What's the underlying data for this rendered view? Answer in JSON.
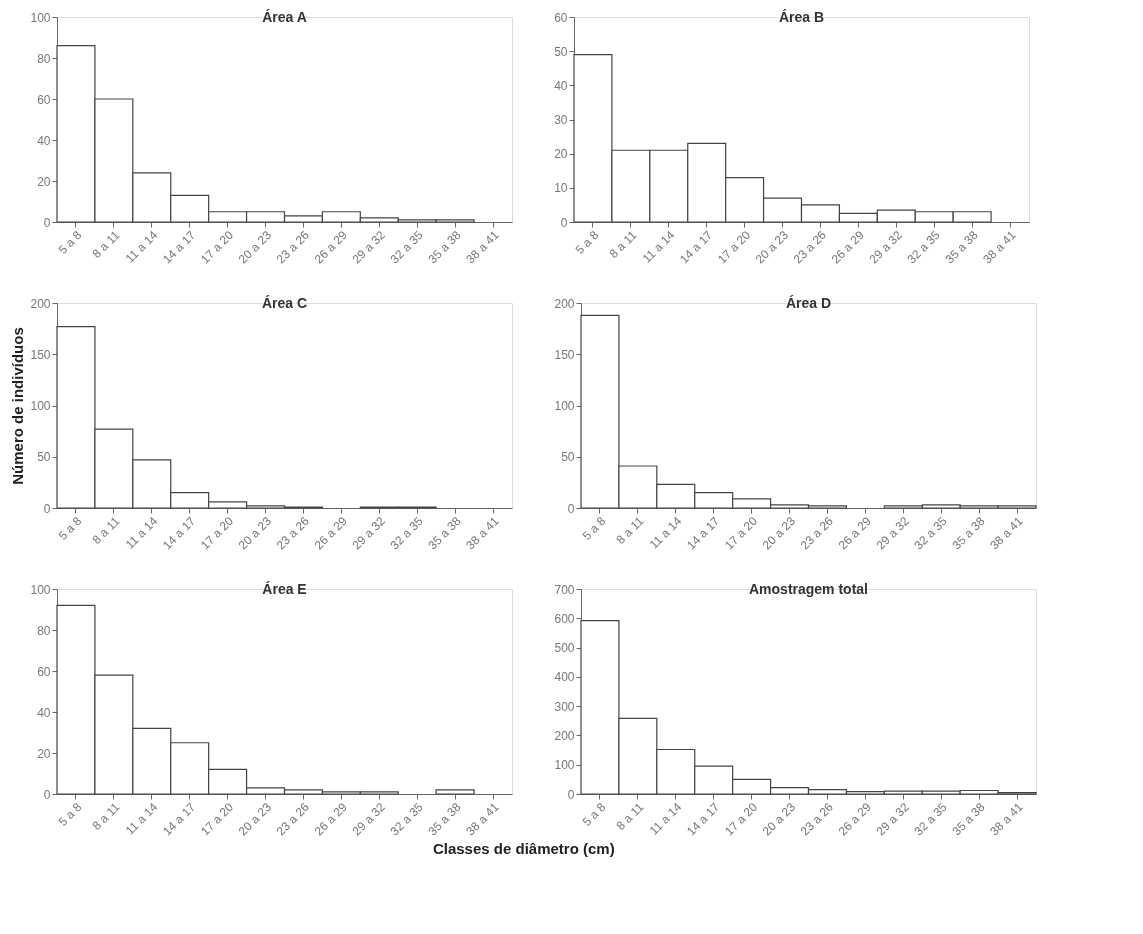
{
  "chart_data": [
    {
      "type": "bar",
      "title": "Área A",
      "categories": [
        "5 a 8",
        "8 a 11",
        "11 a 14",
        "14 a 17",
        "17 a 20",
        "20 a 23",
        "23 a 26",
        "26 a 29",
        "29 a 32",
        "32 a 35",
        "35 a 38",
        "38 a 41"
      ],
      "values": [
        86,
        60,
        24,
        13,
        5,
        5,
        3,
        5,
        2,
        1,
        1,
        null
      ],
      "color": "#ffffff",
      "ylim": [
        0,
        100
      ],
      "yticks": [
        0,
        20,
        40,
        60,
        80,
        100
      ],
      "grid": false
    },
    {
      "type": "bar",
      "title": "Área B",
      "categories": [
        "5 a 8",
        "8 a 11",
        "11 a 14",
        "14 a 17",
        "17 a 20",
        "20 a 23",
        "23 a 26",
        "26 a 29",
        "29 a 32",
        "32 a 35",
        "35 a 38",
        "38 a 41"
      ],
      "values": [
        49,
        21,
        21,
        23,
        13,
        7,
        5,
        2.5,
        3.5,
        3,
        3,
        null
      ],
      "color": "#ffffff",
      "ylim": [
        0,
        60
      ],
      "yticks": [
        0,
        10,
        20,
        30,
        40,
        50,
        60
      ],
      "grid": false
    },
    {
      "type": "bar",
      "title": "Área C",
      "ylabel": "Número de indivíduos",
      "categories": [
        "5 a 8",
        "8 a 11",
        "11 a 14",
        "14 a 17",
        "17 a 20",
        "20 a 23",
        "23 a 26",
        "26 a 29",
        "29 a 32",
        "32 a 35",
        "35 a 38",
        "38 a 41"
      ],
      "values": [
        177,
        77,
        47,
        15,
        6,
        2,
        1,
        null,
        1,
        1,
        null,
        null
      ],
      "color": "#ffffff",
      "ylim": [
        0,
        200
      ],
      "yticks": [
        0,
        50,
        100,
        150,
        200
      ],
      "grid": false
    },
    {
      "type": "bar",
      "title": "Área D",
      "categories": [
        "5 a 8",
        "8 a 11",
        "11 a 14",
        "14 a 17",
        "17 a 20",
        "20 a 23",
        "23 a 26",
        "26 a 29",
        "29 a 32",
        "32 a 35",
        "35 a 38",
        "38 a 41"
      ],
      "values": [
        188,
        41,
        23,
        15,
        9,
        3,
        2,
        null,
        2,
        3,
        2,
        2
      ],
      "color": "#ffffff",
      "ylim": [
        0,
        200
      ],
      "yticks": [
        0,
        50,
        100,
        150,
        200
      ],
      "grid": false
    },
    {
      "type": "bar",
      "title": "Área E",
      "xlabel": "Classes de diâmetro (cm)",
      "categories": [
        "5 a 8",
        "8 a 11",
        "11 a 14",
        "14 a 17",
        "17 a 20",
        "20 a 23",
        "23 a 26",
        "26 a 29",
        "29 a 32",
        "32 a 35",
        "35 a 38",
        "38 a 41"
      ],
      "values": [
        92,
        58,
        32,
        25,
        12,
        3,
        2,
        1,
        1,
        null,
        2,
        null
      ],
      "color": "#ffffff",
      "ylim": [
        0,
        100
      ],
      "yticks": [
        0,
        20,
        40,
        60,
        80,
        100
      ],
      "grid": false
    },
    {
      "type": "bar",
      "title": "Amostragem total",
      "categories": [
        "5 a 8",
        "8 a 11",
        "11 a 14",
        "14 a 17",
        "17 a 20",
        "20 a 23",
        "23 a 26",
        "26 a 29",
        "29 a 32",
        "32 a 35",
        "35 a 38",
        "38 a 41"
      ],
      "values": [
        592,
        258,
        152,
        95,
        50,
        22,
        15,
        8,
        10,
        10,
        12,
        5
      ],
      "color": "#ffffff",
      "ylim": [
        0,
        700
      ],
      "yticks": [
        0,
        100,
        200,
        300,
        400,
        500,
        600,
        700
      ],
      "grid": false
    }
  ]
}
